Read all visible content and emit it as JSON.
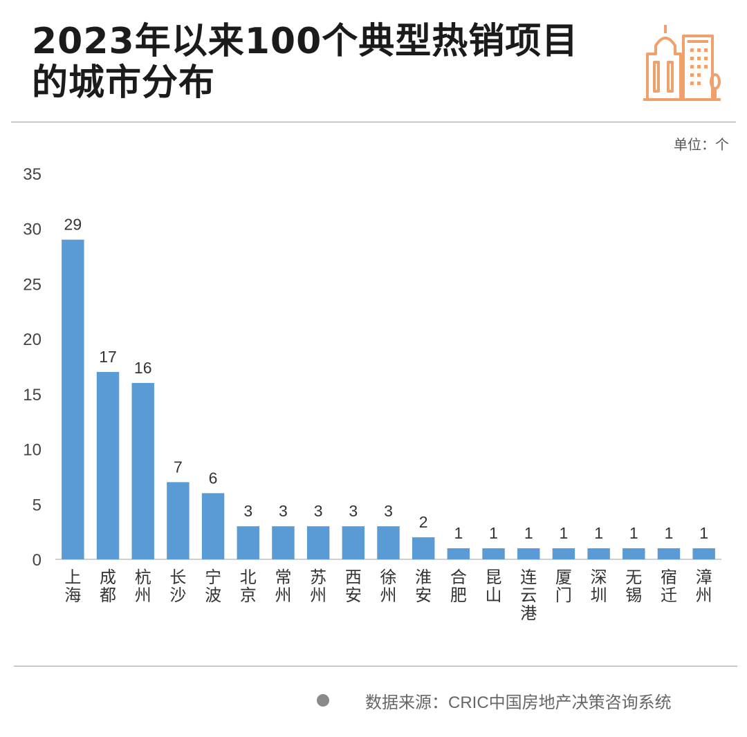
{
  "header": {
    "title_line1": "2023年以来100个典型热销项目",
    "title_line2": "的城市分布",
    "logo_icon": "city-buildings-icon",
    "accent": "#F0A06A"
  },
  "unit_label": "单位：个",
  "footer": {
    "source": "数据来源：CRIC中国房地产决策咨询系统"
  },
  "chart_data": {
    "type": "bar",
    "title": "",
    "xlabel": "",
    "ylabel": "",
    "ylim": [
      0,
      35
    ],
    "yticks": [
      0,
      5,
      10,
      15,
      20,
      25,
      30,
      35
    ],
    "categories": [
      "上海",
      "成都",
      "杭州",
      "长沙",
      "宁波",
      "北京",
      "常州",
      "苏州",
      "西安",
      "徐州",
      "淮安",
      "合肥",
      "昆山",
      "连云港",
      "厦门",
      "深圳",
      "无锡",
      "宿迁",
      "漳州"
    ],
    "values": [
      29,
      17,
      16,
      7,
      6,
      3,
      3,
      3,
      3,
      3,
      2,
      1,
      1,
      1,
      1,
      1,
      1,
      1,
      1
    ],
    "bar_color": "#5B9BD5",
    "grid": false,
    "legend": "none"
  }
}
